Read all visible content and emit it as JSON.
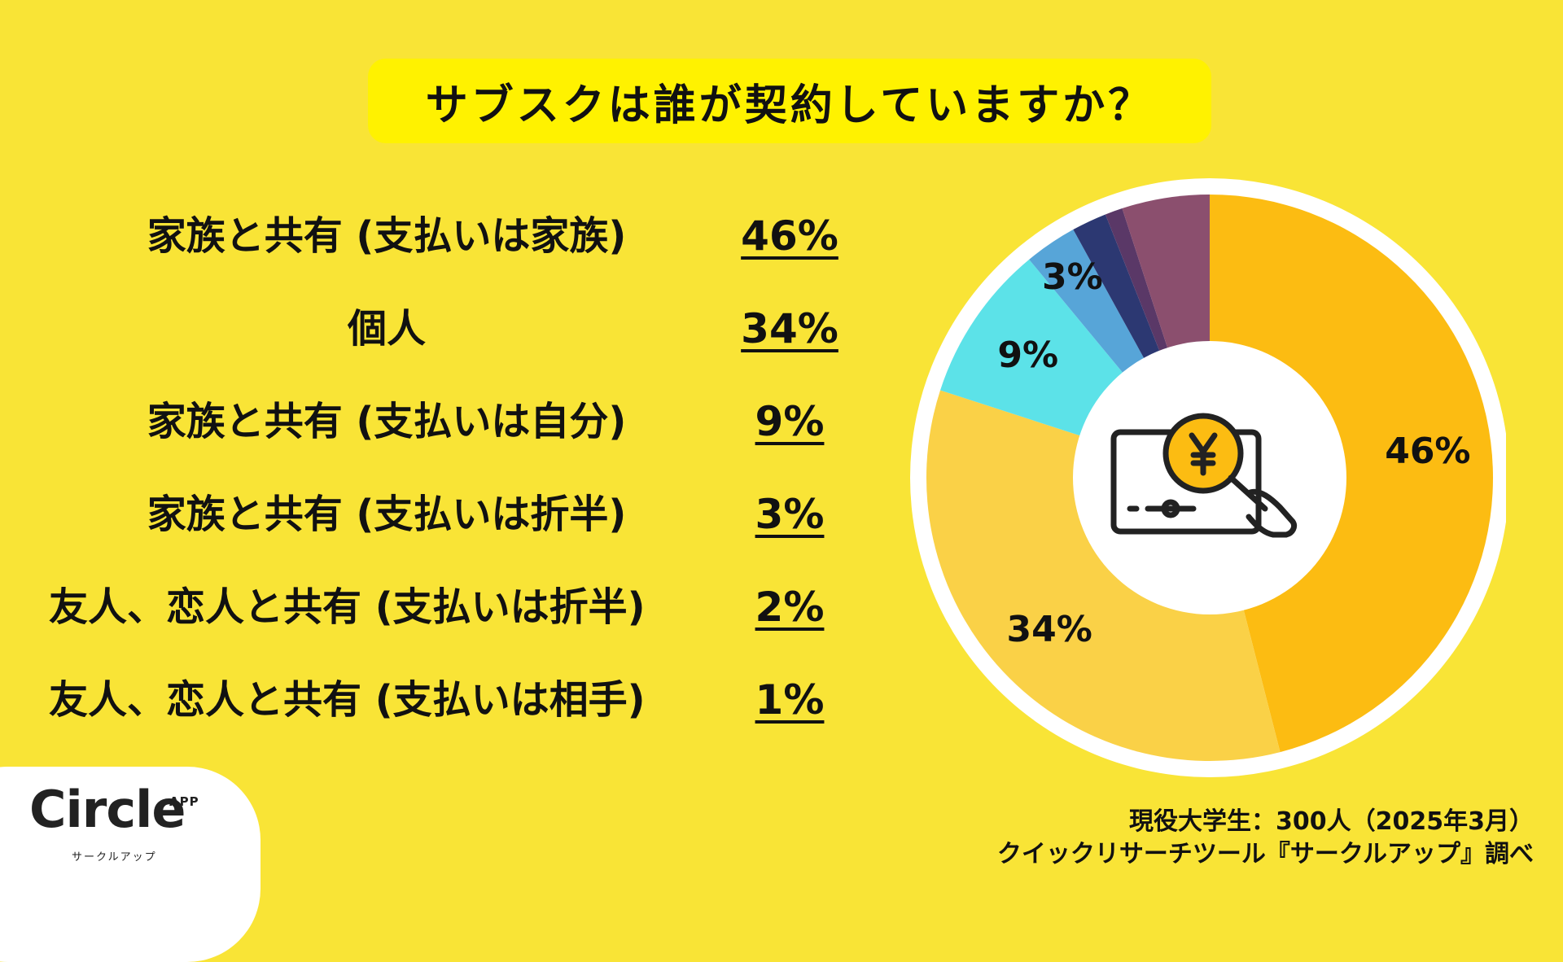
{
  "title": "サブスクは誰が契約していますか？",
  "chart_data": {
    "type": "pie",
    "title": "サブスクは誰が契約していますか？",
    "categories": [
      "家族と共有 (支払いは家族)",
      "個人",
      "家族と共有 (支払いは自分)",
      "家族と共有 (支払いは折半)",
      "友人、恋人と共有 (支払いは折半)",
      "友人、恋人と共有 (支払いは相手)"
    ],
    "values": [
      46,
      34,
      9,
      3,
      2,
      1
    ],
    "value_labels": [
      "46%",
      "34%",
      "9%",
      "3%",
      "2%",
      "1%"
    ],
    "colors": [
      "#FCBC12",
      "#FAD147",
      "#5CE2E8",
      "#57A5D8",
      "#2C3872",
      "#5A3867",
      "#8B4F6E"
    ],
    "unlabeled_remainder": 5,
    "center_icon": "yen-payment-icon"
  },
  "rows": [
    {
      "label": "家族と共有 (支払いは家族)",
      "value": "46%"
    },
    {
      "label": "個人",
      "value": "34%"
    },
    {
      "label": "家族と共有 (支払いは自分)",
      "value": "9%"
    },
    {
      "label": "家族と共有 (支払いは折半)",
      "value": "3%"
    },
    {
      "label": "友人、恋人と共有 (支払いは折半)",
      "value": "2%"
    },
    {
      "label": "友人、恋人と共有 (支払いは相手)",
      "value": "1%"
    }
  ],
  "logo": {
    "name": "Circle",
    "app": "APP",
    "sub": "サークルアップ"
  },
  "source": {
    "line1": "現役大学生：300人（2025年3月）",
    "line2": "クイックリサーチツール『サークルアップ』調べ"
  }
}
